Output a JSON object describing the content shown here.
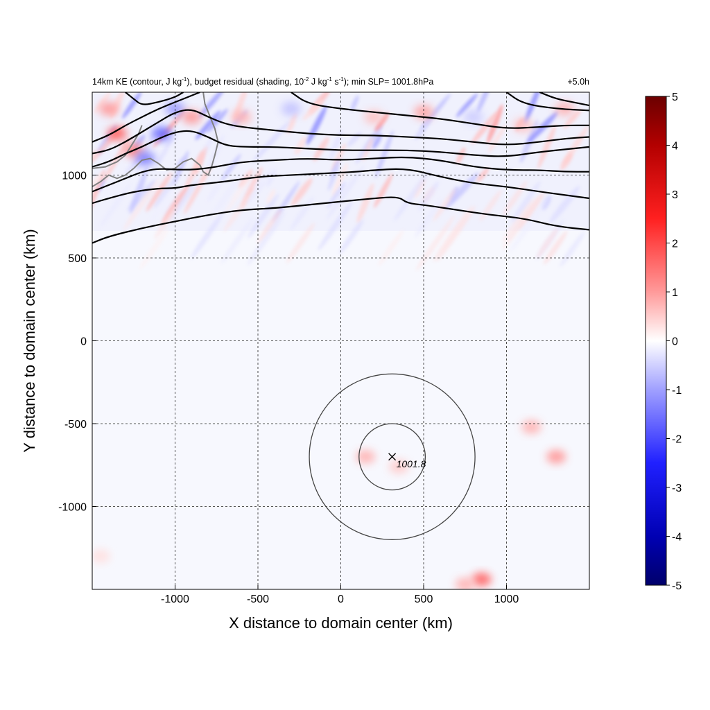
{
  "chart_data": {
    "type": "heatmap",
    "title": {
      "p1": "14km KE (contour, J kg",
      "p2": "-1",
      "p3": "), budget residual (shading, 10",
      "p4": "-2",
      "p5": " J kg",
      "p6": "-1",
      "p7": " s",
      "p8": "-1",
      "p9": "); min SLP= 1001.8hPa"
    },
    "time_label": "+5.0h",
    "xlabel": "X distance to domain center (km)",
    "ylabel": "Y distance to domain center (km)",
    "xlim": [
      -1500,
      1500
    ],
    "ylim": [
      -1500,
      1500
    ],
    "x_ticks": [
      -1000,
      -500,
      0,
      500,
      1000
    ],
    "y_ticks": [
      -1000,
      -500,
      0,
      500,
      1000
    ],
    "x_tick_labels": [
      "-1000",
      "-500",
      "0",
      "500",
      "1000"
    ],
    "y_tick_labels": [
      "-1000",
      "-500",
      "0",
      "500",
      "1000"
    ],
    "grid": true,
    "colorbar": {
      "min": -5,
      "max": 5,
      "ticks": [
        5,
        4,
        3,
        2,
        1,
        0,
        -1,
        -2,
        -3,
        -4,
        -5
      ],
      "tick_labels": [
        "5",
        "4",
        "3",
        "2",
        "1",
        "0",
        "-1",
        "-2",
        "-3",
        "-4",
        "-5"
      ],
      "colormap": "blue-white-red"
    },
    "storm_center": {
      "x": 310,
      "y": -700,
      "label": "1001.8"
    },
    "range_circles_km": [
      200,
      500
    ],
    "ke_contours": [
      [
        [
          -1500,
          590
        ],
        [
          -1400,
          630
        ],
        [
          -1200,
          680
        ],
        [
          -1000,
          720
        ],
        [
          -800,
          760
        ],
        [
          -600,
          790
        ],
        [
          -400,
          800
        ],
        [
          -200,
          820
        ],
        [
          0,
          840
        ],
        [
          200,
          860
        ],
        [
          350,
          870
        ],
        [
          400,
          830
        ],
        [
          500,
          820
        ],
        [
          700,
          790
        ],
        [
          900,
          760
        ],
        [
          1100,
          740
        ],
        [
          1300,
          690
        ],
        [
          1500,
          670
        ]
      ],
      [
        [
          -1500,
          830
        ],
        [
          -1400,
          860
        ],
        [
          -1250,
          900
        ],
        [
          -1100,
          920
        ],
        [
          -1000,
          920
        ],
        [
          -900,
          940
        ],
        [
          -700,
          960
        ],
        [
          -500,
          990
        ],
        [
          -300,
          1000
        ],
        [
          -100,
          1010
        ],
        [
          100,
          1020
        ],
        [
          200,
          1030
        ],
        [
          400,
          1040
        ],
        [
          600,
          990
        ],
        [
          800,
          950
        ],
        [
          1000,
          930
        ],
        [
          1200,
          900
        ],
        [
          1350,
          880
        ],
        [
          1500,
          860
        ]
      ],
      [
        [
          -1500,
          900
        ],
        [
          -1400,
          940
        ],
        [
          -1300,
          980
        ],
        [
          -1200,
          1020
        ],
        [
          -1100,
          1040
        ],
        [
          -950,
          1030
        ],
        [
          -800,
          1040
        ],
        [
          -600,
          1080
        ],
        [
          -400,
          1090
        ],
        [
          -200,
          1100
        ],
        [
          0,
          1090
        ],
        [
          200,
          1100
        ],
        [
          400,
          1110
        ],
        [
          600,
          1090
        ],
        [
          800,
          1050
        ],
        [
          1000,
          1030
        ],
        [
          1200,
          1030
        ],
        [
          1350,
          1020
        ],
        [
          1500,
          1020
        ]
      ],
      [
        [
          -1500,
          1050
        ],
        [
          -1400,
          1080
        ],
        [
          -1300,
          1130
        ],
        [
          -1200,
          1170
        ],
        [
          -1100,
          1220
        ],
        [
          -1000,
          1260
        ],
        [
          -900,
          1270
        ],
        [
          -800,
          1230
        ],
        [
          -700,
          1180
        ],
        [
          -600,
          1170
        ],
        [
          -400,
          1170
        ],
        [
          -200,
          1160
        ],
        [
          0,
          1150
        ],
        [
          200,
          1150
        ],
        [
          400,
          1150
        ],
        [
          600,
          1140
        ],
        [
          800,
          1120
        ],
        [
          1000,
          1110
        ],
        [
          1200,
          1140
        ],
        [
          1500,
          1170
        ]
      ],
      [
        [
          -1500,
          1130
        ],
        [
          -1400,
          1150
        ],
        [
          -1300,
          1200
        ],
        [
          -1200,
          1260
        ],
        [
          -1100,
          1320
        ],
        [
          -1000,
          1380
        ],
        [
          -900,
          1400
        ],
        [
          -800,
          1350
        ],
        [
          -700,
          1310
        ],
        [
          -600,
          1290
        ],
        [
          -400,
          1270
        ],
        [
          -200,
          1250
        ],
        [
          0,
          1240
        ],
        [
          200,
          1240
        ],
        [
          400,
          1230
        ],
        [
          600,
          1220
        ],
        [
          800,
          1200
        ],
        [
          1000,
          1180
        ],
        [
          1200,
          1200
        ],
        [
          1350,
          1220
        ],
        [
          1500,
          1230
        ]
      ],
      [
        [
          -1500,
          1200
        ],
        [
          -1400,
          1240
        ],
        [
          -1300,
          1300
        ],
        [
          -1200,
          1350
        ],
        [
          -1100,
          1400
        ],
        [
          -1000,
          1440
        ],
        [
          -900,
          1480
        ],
        [
          -850,
          1500
        ]
      ],
      [
        [
          -1300,
          1500
        ],
        [
          -1250,
          1460
        ],
        [
          -1200,
          1420
        ],
        [
          -1100,
          1440
        ],
        [
          -1000,
          1470
        ],
        [
          -950,
          1500
        ]
      ],
      [
        [
          -300,
          1500
        ],
        [
          -200,
          1430
        ],
        [
          0,
          1400
        ],
        [
          200,
          1380
        ],
        [
          400,
          1360
        ],
        [
          600,
          1340
        ],
        [
          800,
          1310
        ],
        [
          1000,
          1280
        ],
        [
          1200,
          1290
        ],
        [
          1350,
          1300
        ],
        [
          1500,
          1300
        ]
      ],
      [
        [
          1000,
          1500
        ],
        [
          1100,
          1430
        ],
        [
          1300,
          1400
        ],
        [
          1500,
          1390
        ]
      ],
      [
        [
          1200,
          1500
        ],
        [
          1300,
          1460
        ],
        [
          1400,
          1440
        ],
        [
          1500,
          1420
        ]
      ]
    ],
    "coastline": [
      [
        [
          -1500,
          930
        ],
        [
          -1450,
          960
        ],
        [
          -1400,
          1000
        ],
        [
          -1350,
          980
        ],
        [
          -1300,
          1000
        ],
        [
          -1250,
          1040
        ],
        [
          -1200,
          1090
        ],
        [
          -1150,
          1100
        ],
        [
          -1100,
          1070
        ],
        [
          -1050,
          1030
        ],
        [
          -1000,
          1040
        ],
        [
          -950,
          1080
        ],
        [
          -900,
          1100
        ],
        [
          -850,
          1060
        ],
        [
          -830,
          1020
        ],
        [
          -800,
          1000
        ],
        [
          -780,
          1050
        ],
        [
          -760,
          1120
        ],
        [
          -740,
          1200
        ],
        [
          -760,
          1280
        ],
        [
          -780,
          1330
        ],
        [
          -800,
          1380
        ],
        [
          -820,
          1430
        ],
        [
          -830,
          1500
        ]
      ],
      [
        [
          -1500,
          1040
        ],
        [
          -1420,
          1050
        ],
        [
          -1350,
          1080
        ],
        [
          -1300,
          1120
        ],
        [
          -1250,
          1200
        ],
        [
          -1220,
          1250
        ],
        [
          -1200,
          1300
        ]
      ]
    ],
    "shading_features": [
      {
        "x": -1350,
        "y": 1250,
        "value": 3.0
      },
      {
        "x": -1250,
        "y": 1150,
        "value": 2.5
      },
      {
        "x": -1180,
        "y": 1100,
        "value": -2.5
      },
      {
        "x": -1080,
        "y": 1250,
        "value": -3.0
      },
      {
        "x": -1000,
        "y": 1400,
        "value": -2.0
      },
      {
        "x": -1400,
        "y": 1400,
        "value": 2.0
      },
      {
        "x": -900,
        "y": 1350,
        "value": 2.0
      },
      {
        "x": -600,
        "y": 1350,
        "value": 1.5
      },
      {
        "x": -300,
        "y": 1400,
        "value": -1.2
      },
      {
        "x": 200,
        "y": 1350,
        "value": 1.2
      },
      {
        "x": 500,
        "y": 1380,
        "value": 1.8
      },
      {
        "x": 800,
        "y": 1350,
        "value": -1.0
      },
      {
        "x": 1100,
        "y": 1300,
        "value": 1.2
      },
      {
        "x": 1350,
        "y": 1400,
        "value": 1.5
      },
      {
        "x": 150,
        "y": -700,
        "value": 1.5
      },
      {
        "x": 350,
        "y": -760,
        "value": 1.0
      },
      {
        "x": 1150,
        "y": -520,
        "value": 1.5
      },
      {
        "x": 1300,
        "y": -700,
        "value": 2.0
      },
      {
        "x": 850,
        "y": -1440,
        "value": 3.0
      },
      {
        "x": 750,
        "y": -1470,
        "value": 1.5
      },
      {
        "x": -1450,
        "y": -1300,
        "value": 0.6
      }
    ]
  }
}
